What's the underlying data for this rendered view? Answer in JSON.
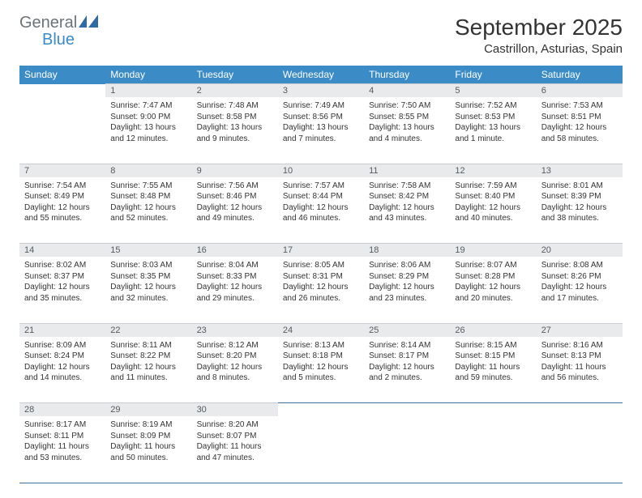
{
  "brand": {
    "name1": "General",
    "name2": "Blue"
  },
  "title": "September 2025",
  "location": "Castrillon, Asturias, Spain",
  "colors": {
    "header_bg": "#3b8bc6",
    "header_text": "#ffffff",
    "daynum_bg": "#e9eaec",
    "daynum_text": "#555b61",
    "rule": "#2f5f8f",
    "body_text": "#333333",
    "logo_gray": "#6b7278",
    "logo_blue": "#3b8bc6"
  },
  "day_headers": [
    "Sunday",
    "Monday",
    "Tuesday",
    "Wednesday",
    "Thursday",
    "Friday",
    "Saturday"
  ],
  "weeks": [
    {
      "nums": [
        "",
        "1",
        "2",
        "3",
        "4",
        "5",
        "6"
      ],
      "cells": [
        null,
        {
          "sr": "7:47 AM",
          "ss": "9:00 PM",
          "dl": "13 hours and 12 minutes."
        },
        {
          "sr": "7:48 AM",
          "ss": "8:58 PM",
          "dl": "13 hours and 9 minutes."
        },
        {
          "sr": "7:49 AM",
          "ss": "8:56 PM",
          "dl": "13 hours and 7 minutes."
        },
        {
          "sr": "7:50 AM",
          "ss": "8:55 PM",
          "dl": "13 hours and 4 minutes."
        },
        {
          "sr": "7:52 AM",
          "ss": "8:53 PM",
          "dl": "13 hours and 1 minute."
        },
        {
          "sr": "7:53 AM",
          "ss": "8:51 PM",
          "dl": "12 hours and 58 minutes."
        }
      ]
    },
    {
      "nums": [
        "7",
        "8",
        "9",
        "10",
        "11",
        "12",
        "13"
      ],
      "cells": [
        {
          "sr": "7:54 AM",
          "ss": "8:49 PM",
          "dl": "12 hours and 55 minutes."
        },
        {
          "sr": "7:55 AM",
          "ss": "8:48 PM",
          "dl": "12 hours and 52 minutes."
        },
        {
          "sr": "7:56 AM",
          "ss": "8:46 PM",
          "dl": "12 hours and 49 minutes."
        },
        {
          "sr": "7:57 AM",
          "ss": "8:44 PM",
          "dl": "12 hours and 46 minutes."
        },
        {
          "sr": "7:58 AM",
          "ss": "8:42 PM",
          "dl": "12 hours and 43 minutes."
        },
        {
          "sr": "7:59 AM",
          "ss": "8:40 PM",
          "dl": "12 hours and 40 minutes."
        },
        {
          "sr": "8:01 AM",
          "ss": "8:39 PM",
          "dl": "12 hours and 38 minutes."
        }
      ]
    },
    {
      "nums": [
        "14",
        "15",
        "16",
        "17",
        "18",
        "19",
        "20"
      ],
      "cells": [
        {
          "sr": "8:02 AM",
          "ss": "8:37 PM",
          "dl": "12 hours and 35 minutes."
        },
        {
          "sr": "8:03 AM",
          "ss": "8:35 PM",
          "dl": "12 hours and 32 minutes."
        },
        {
          "sr": "8:04 AM",
          "ss": "8:33 PM",
          "dl": "12 hours and 29 minutes."
        },
        {
          "sr": "8:05 AM",
          "ss": "8:31 PM",
          "dl": "12 hours and 26 minutes."
        },
        {
          "sr": "8:06 AM",
          "ss": "8:29 PM",
          "dl": "12 hours and 23 minutes."
        },
        {
          "sr": "8:07 AM",
          "ss": "8:28 PM",
          "dl": "12 hours and 20 minutes."
        },
        {
          "sr": "8:08 AM",
          "ss": "8:26 PM",
          "dl": "12 hours and 17 minutes."
        }
      ]
    },
    {
      "nums": [
        "21",
        "22",
        "23",
        "24",
        "25",
        "26",
        "27"
      ],
      "cells": [
        {
          "sr": "8:09 AM",
          "ss": "8:24 PM",
          "dl": "12 hours and 14 minutes."
        },
        {
          "sr": "8:11 AM",
          "ss": "8:22 PM",
          "dl": "12 hours and 11 minutes."
        },
        {
          "sr": "8:12 AM",
          "ss": "8:20 PM",
          "dl": "12 hours and 8 minutes."
        },
        {
          "sr": "8:13 AM",
          "ss": "8:18 PM",
          "dl": "12 hours and 5 minutes."
        },
        {
          "sr": "8:14 AM",
          "ss": "8:17 PM",
          "dl": "12 hours and 2 minutes."
        },
        {
          "sr": "8:15 AM",
          "ss": "8:15 PM",
          "dl": "11 hours and 59 minutes."
        },
        {
          "sr": "8:16 AM",
          "ss": "8:13 PM",
          "dl": "11 hours and 56 minutes."
        }
      ]
    },
    {
      "nums": [
        "28",
        "29",
        "30",
        "",
        "",
        "",
        ""
      ],
      "cells": [
        {
          "sr": "8:17 AM",
          "ss": "8:11 PM",
          "dl": "11 hours and 53 minutes."
        },
        {
          "sr": "8:19 AM",
          "ss": "8:09 PM",
          "dl": "11 hours and 50 minutes."
        },
        {
          "sr": "8:20 AM",
          "ss": "8:07 PM",
          "dl": "11 hours and 47 minutes."
        },
        null,
        null,
        null,
        null
      ]
    }
  ],
  "labels": {
    "sunrise": "Sunrise:",
    "sunset": "Sunset:",
    "daylight": "Daylight:"
  }
}
